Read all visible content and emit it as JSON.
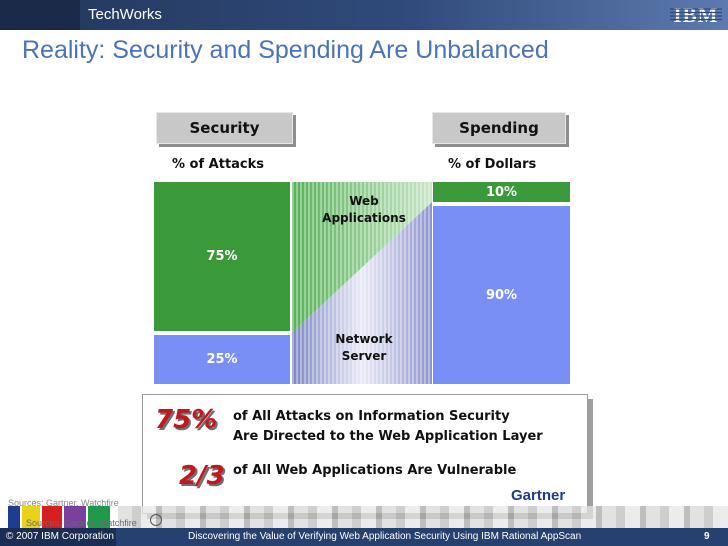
{
  "header": {
    "brand": "TechWorks",
    "logo": "IBM"
  },
  "title": "Reality: Security and Spending Are Unbalanced",
  "chart_data": [
    {
      "type": "bar",
      "stacked": true,
      "header": "Security",
      "subtitle": "% of Attacks",
      "series": [
        {
          "name": "Web Applications",
          "value": 75,
          "label": "75%",
          "color": "#3a9a3a"
        },
        {
          "name": "Network Server",
          "value": 25,
          "label": "25%",
          "color": "#7a8ff6"
        }
      ]
    },
    {
      "type": "bar",
      "stacked": true,
      "header": "Spending",
      "subtitle": "% of Dollars",
      "series": [
        {
          "name": "Web Applications",
          "value": 10,
          "label": "10%",
          "color": "#3a9a3a"
        },
        {
          "name": "Network Server",
          "value": 90,
          "label": "90%",
          "color": "#7a8ff6"
        }
      ]
    }
  ],
  "connector": {
    "top_label": "Web\nApplications",
    "bottom_label": "Network\nServer"
  },
  "callout": {
    "stat1": "75%",
    "stat1_line1": "of All Attacks on Information Security",
    "stat1_line2": "Are Directed to the Web Application Layer",
    "stat2": "2/3",
    "stat2_text": "of All Web Applications Are Vulnerable",
    "logo": "Gartner"
  },
  "sources": {
    "line1": "Sources: Gartner, Watchfire",
    "line2": "Sources: Gartner, Watchfire"
  },
  "footer": {
    "copyright": "© 2007 IBM Corporation",
    "presentation": "Discovering the Value of Verifying Web Application Security Using IBM Rational AppScan",
    "page": "9"
  },
  "colors": {
    "green": "#3a9a3a",
    "blue": "#7a8ff6",
    "title": "#4a73b8",
    "stat": "#c0181d",
    "header_bg": "#2f4a7a"
  }
}
